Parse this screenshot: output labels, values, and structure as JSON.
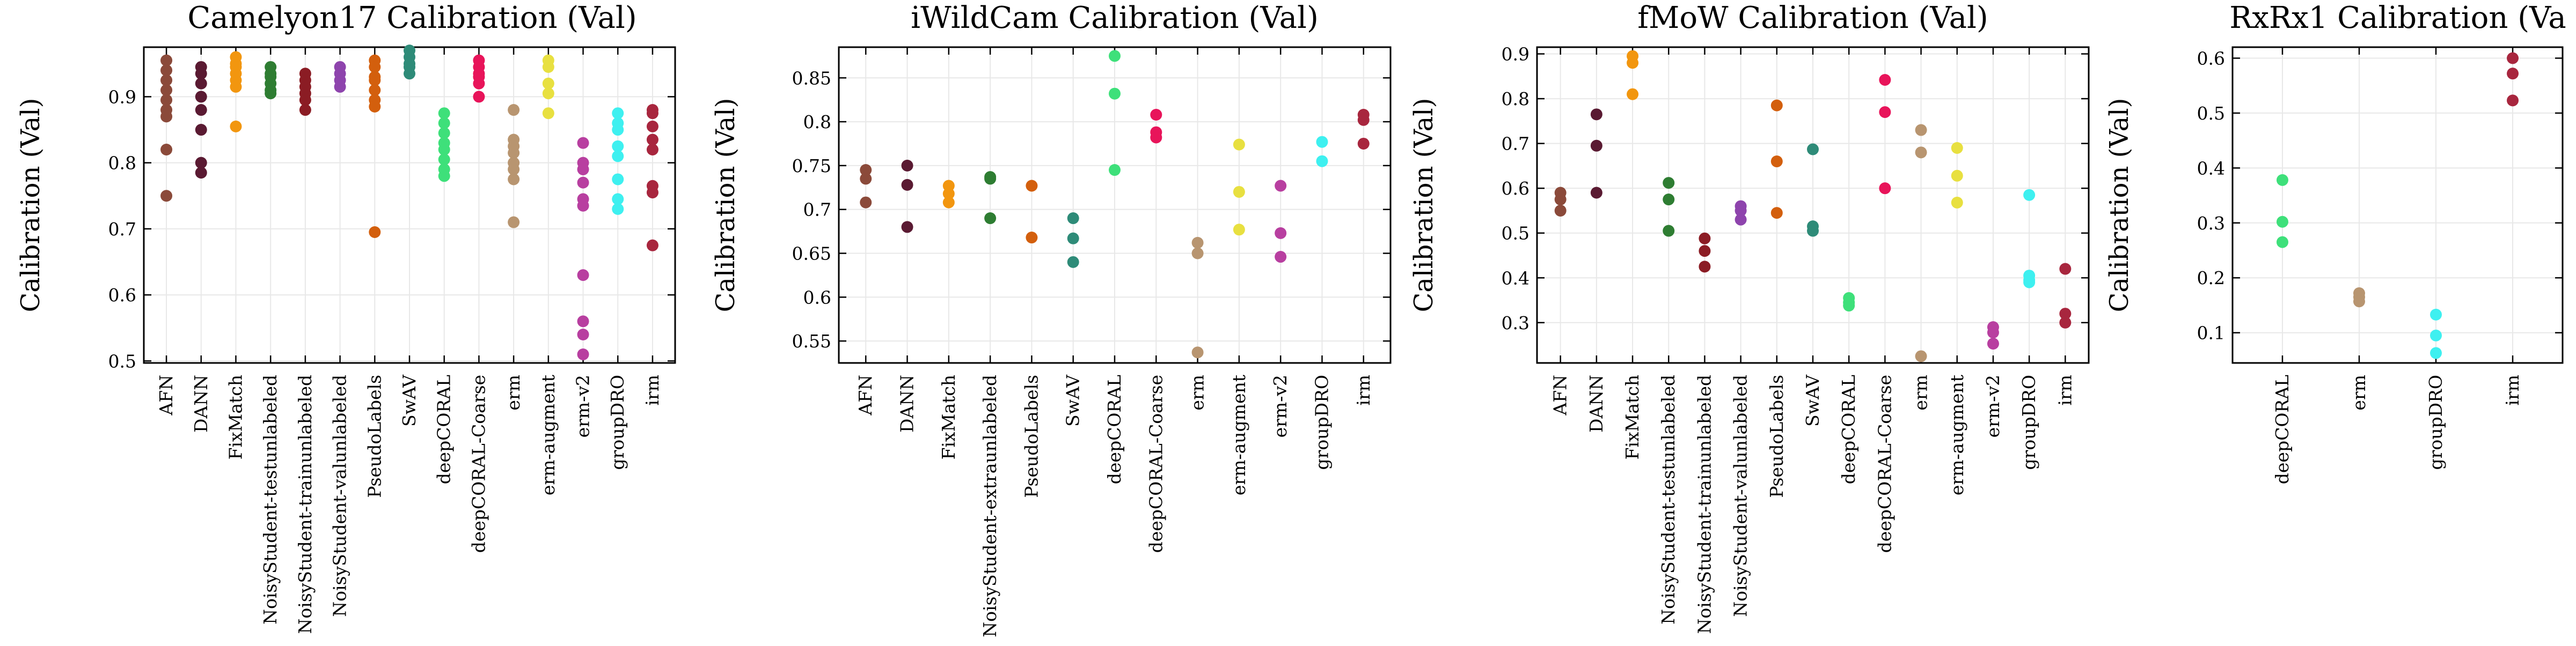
{
  "chart_data": [
    {
      "type": "scatter",
      "title": "Camelyon17 Calibration (Val)",
      "ylabel": "Calibration (Val)",
      "xlabel": "",
      "grid": true,
      "ylim": [
        0.497,
        0.975
      ],
      "yticks": [
        0.5,
        0.6,
        0.7,
        0.8,
        0.9
      ],
      "categories": [
        "AFN",
        "DANN",
        "FixMatch",
        "NoisyStudent-testunlabeled",
        "NoisyStudent-trainunlabeled",
        "NoisyStudent-valunlabeled",
        "PseudoLabels",
        "SwAV",
        "deepCORAL",
        "deepCORAL-Coarse",
        "erm",
        "erm-augment",
        "erm-v2",
        "groupDRO",
        "irm"
      ],
      "series": [
        {
          "category": "AFN",
          "color": "#8b4a3a",
          "values": [
            0.955,
            0.94,
            0.925,
            0.91,
            0.895,
            0.88,
            0.87,
            0.82,
            0.75
          ]
        },
        {
          "category": "DANN",
          "color": "#5a1a32",
          "values": [
            0.945,
            0.935,
            0.92,
            0.9,
            0.88,
            0.85,
            0.8,
            0.785
          ]
        },
        {
          "category": "FixMatch",
          "color": "#f2960f",
          "values": [
            0.96,
            0.95,
            0.945,
            0.935,
            0.925,
            0.915,
            0.855
          ]
        },
        {
          "category": "NoisyStudent-testunlabeled",
          "color": "#2e7d32",
          "values": [
            0.945,
            0.935,
            0.93,
            0.92,
            0.91,
            0.905
          ]
        },
        {
          "category": "NoisyStudent-trainunlabeled",
          "color": "#8b1c24",
          "values": [
            0.935,
            0.925,
            0.915,
            0.905,
            0.895,
            0.88
          ]
        },
        {
          "category": "NoisyStudent-valunlabeled",
          "color": "#8e44ad",
          "values": [
            0.945,
            0.935,
            0.925,
            0.915
          ]
        },
        {
          "category": "PseudoLabels",
          "color": "#d35f0d",
          "values": [
            0.955,
            0.945,
            0.93,
            0.925,
            0.91,
            0.895,
            0.885,
            0.695
          ]
        },
        {
          "category": "SwAV",
          "color": "#2e8b78",
          "values": [
            0.97,
            0.96,
            0.95,
            0.945,
            0.935
          ]
        },
        {
          "category": "deepCORAL",
          "color": "#3ee07a",
          "values": [
            0.875,
            0.86,
            0.845,
            0.83,
            0.82,
            0.805,
            0.79,
            0.78
          ]
        },
        {
          "category": "deepCORAL-Coarse",
          "color": "#e8145a",
          "values": [
            0.955,
            0.945,
            0.935,
            0.93,
            0.92,
            0.9
          ]
        },
        {
          "category": "erm",
          "color": "#b89570",
          "values": [
            0.88,
            0.835,
            0.825,
            0.815,
            0.8,
            0.79,
            0.775,
            0.71
          ]
        },
        {
          "category": "erm-augment",
          "color": "#e8e040",
          "values": [
            0.955,
            0.945,
            0.92,
            0.905,
            0.875
          ]
        },
        {
          "category": "erm-v2",
          "color": "#b83fa0",
          "values": [
            0.83,
            0.8,
            0.79,
            0.77,
            0.745,
            0.735,
            0.63,
            0.56,
            0.54,
            0.51
          ]
        },
        {
          "category": "groupDRO",
          "color": "#3ef0f0",
          "values": [
            0.875,
            0.86,
            0.85,
            0.825,
            0.81,
            0.775,
            0.745,
            0.73
          ]
        },
        {
          "category": "irm",
          "color": "#a8263e",
          "values": [
            0.88,
            0.875,
            0.855,
            0.835,
            0.82,
            0.765,
            0.755,
            0.675
          ]
        }
      ]
    },
    {
      "type": "scatter",
      "title": "iWildCam Calibration (Val)",
      "ylabel": "Calibration (Val)",
      "xlabel": "",
      "grid": true,
      "ylim": [
        0.525,
        0.885
      ],
      "yticks": [
        0.55,
        0.6,
        0.65,
        0.7,
        0.75,
        0.8,
        0.85
      ],
      "categories": [
        "AFN",
        "DANN",
        "FixMatch",
        "NoisyStudent-extraunlabeled",
        "PseudoLabels",
        "SwAV",
        "deepCORAL",
        "deepCORAL-Coarse",
        "erm",
        "erm-augment",
        "erm-v2",
        "groupDRO",
        "irm"
      ],
      "series": [
        {
          "category": "AFN",
          "color": "#8b4a3a",
          "values": [
            0.745,
            0.735,
            0.708
          ]
        },
        {
          "category": "DANN",
          "color": "#5a1a32",
          "values": [
            0.75,
            0.728,
            0.68
          ]
        },
        {
          "category": "FixMatch",
          "color": "#f2960f",
          "values": [
            0.727,
            0.718,
            0.708
          ]
        },
        {
          "category": "NoisyStudent-extraunlabeled",
          "color": "#2e7d32",
          "values": [
            0.737,
            0.735,
            0.69
          ]
        },
        {
          "category": "PseudoLabels",
          "color": "#d35f0d",
          "values": [
            0.727,
            0.668
          ]
        },
        {
          "category": "SwAV",
          "color": "#2e8b78",
          "values": [
            0.69,
            0.667,
            0.64
          ]
        },
        {
          "category": "deepCORAL",
          "color": "#3ee07a",
          "values": [
            0.875,
            0.832,
            0.745
          ]
        },
        {
          "category": "deepCORAL-Coarse",
          "color": "#e8145a",
          "values": [
            0.808,
            0.788,
            0.782
          ]
        },
        {
          "category": "erm",
          "color": "#b89570",
          "values": [
            0.662,
            0.65,
            0.537
          ]
        },
        {
          "category": "erm-augment",
          "color": "#e8e040",
          "values": [
            0.774,
            0.72,
            0.677
          ]
        },
        {
          "category": "erm-v2",
          "color": "#b83fa0",
          "values": [
            0.727,
            0.673,
            0.646
          ]
        },
        {
          "category": "groupDRO",
          "color": "#3ef0f0",
          "values": [
            0.777,
            0.755
          ]
        },
        {
          "category": "irm",
          "color": "#a8263e",
          "values": [
            0.808,
            0.802,
            0.775
          ]
        }
      ]
    },
    {
      "type": "scatter",
      "title": "fMoW Calibration (Val)",
      "ylabel": "Calibration (Val)",
      "xlabel": "",
      "grid": true,
      "ylim": [
        0.21,
        0.915
      ],
      "yticks": [
        0.3,
        0.4,
        0.5,
        0.6,
        0.7,
        0.8,
        0.9
      ],
      "categories": [
        "AFN",
        "DANN",
        "FixMatch",
        "NoisyStudent-testunlabeled",
        "NoisyStudent-trainunlabeled",
        "NoisyStudent-valunlabeled",
        "PseudoLabels",
        "SwAV",
        "deepCORAL",
        "deepCORAL-Coarse",
        "erm",
        "erm-augment",
        "erm-v2",
        "groupDRO",
        "irm"
      ],
      "series": [
        {
          "category": "AFN",
          "color": "#8b4a3a",
          "values": [
            0.59,
            0.575,
            0.55
          ]
        },
        {
          "category": "DANN",
          "color": "#5a1a32",
          "values": [
            0.765,
            0.695,
            0.59
          ]
        },
        {
          "category": "FixMatch",
          "color": "#f2960f",
          "values": [
            0.895,
            0.88,
            0.81
          ]
        },
        {
          "category": "NoisyStudent-testunlabeled",
          "color": "#2e7d32",
          "values": [
            0.612,
            0.575,
            0.505
          ]
        },
        {
          "category": "NoisyStudent-trainunlabeled",
          "color": "#8b1c24",
          "values": [
            0.488,
            0.46,
            0.425
          ]
        },
        {
          "category": "NoisyStudent-valunlabeled",
          "color": "#8e44ad",
          "values": [
            0.56,
            0.55,
            0.53
          ]
        },
        {
          "category": "PseudoLabels",
          "color": "#d35f0d",
          "values": [
            0.785,
            0.66,
            0.545
          ]
        },
        {
          "category": "SwAV",
          "color": "#2e8b78",
          "values": [
            0.687,
            0.515,
            0.505
          ]
        },
        {
          "category": "deepCORAL",
          "color": "#3ee07a",
          "values": [
            0.355,
            0.345,
            0.338
          ]
        },
        {
          "category": "deepCORAL-Coarse",
          "color": "#e8145a",
          "values": [
            0.842,
            0.77,
            0.6
          ]
        },
        {
          "category": "erm",
          "color": "#b89570",
          "values": [
            0.73,
            0.68,
            0.225
          ]
        },
        {
          "category": "erm-augment",
          "color": "#e8e040",
          "values": [
            0.69,
            0.628,
            0.568
          ]
        },
        {
          "category": "erm-v2",
          "color": "#b83fa0",
          "values": [
            0.29,
            0.278,
            0.253
          ]
        },
        {
          "category": "groupDRO",
          "color": "#3ef0f0",
          "values": [
            0.585,
            0.405,
            0.395,
            0.39
          ]
        },
        {
          "category": "irm",
          "color": "#a8263e",
          "values": [
            0.42,
            0.32,
            0.3
          ]
        }
      ]
    },
    {
      "type": "scatter",
      "title": "RxRx1 Calibration (Va",
      "ylabel": "Calibration (Val)",
      "xlabel": "",
      "grid": true,
      "ylim": [
        0.045,
        0.62
      ],
      "yticks": [
        0.1,
        0.2,
        0.3,
        0.4,
        0.5,
        0.6
      ],
      "categories": [
        "deepCORAL",
        "erm",
        "groupDRO",
        "irm"
      ],
      "series": [
        {
          "category": "deepCORAL",
          "color": "#3ee07a",
          "values": [
            0.378,
            0.302,
            0.265
          ]
        },
        {
          "category": "erm",
          "color": "#b89570",
          "values": [
            0.172,
            0.165,
            0.157
          ]
        },
        {
          "category": "groupDRO",
          "color": "#3ef0f0",
          "values": [
            0.133,
            0.095,
            0.063
          ]
        },
        {
          "category": "irm",
          "color": "#a8263e",
          "values": [
            0.6,
            0.572,
            0.523
          ]
        }
      ]
    }
  ]
}
